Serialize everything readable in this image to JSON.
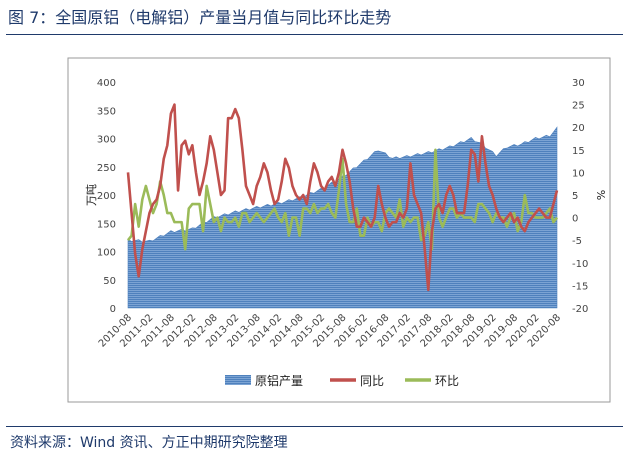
{
  "figure": {
    "title": "图 7：全国原铝（电解铝）产量当月值与同比环比走势",
    "source": "资料来源：Wind 资讯、方正中期研究院整理"
  },
  "colors": {
    "production": "#4f81bd",
    "yoy": "#c0504d",
    "mom": "#9bbb59",
    "title": "#1f3a6b",
    "plot_border": "#9a9a9a"
  },
  "chart_data": {
    "type": "line",
    "area_type": "area",
    "x_tick_labels": [
      "2010-08",
      "2011-02",
      "2011-08",
      "2012-02",
      "2012-08",
      "2013-02",
      "2013-08",
      "2014-02",
      "2014-08",
      "2015-02",
      "2015-08",
      "2016-02",
      "2016-08",
      "2017-02",
      "2017-08",
      "2018-02",
      "2018-08",
      "2019-02",
      "2019-08",
      "2020-02",
      "2020-08"
    ],
    "x_start": "2010-08",
    "n_months": 121,
    "y_left": {
      "label": "万吨",
      "lim": [
        0,
        400
      ],
      "ticks": [
        0,
        50,
        100,
        150,
        200,
        250,
        300,
        350,
        400
      ]
    },
    "y_right": {
      "label": "%",
      "lim": [
        -20,
        30
      ],
      "ticks": [
        -20,
        -15,
        -10,
        -5,
        0,
        5,
        10,
        15,
        20,
        25,
        30
      ]
    },
    "grid": false,
    "legend_position": "bottom",
    "legend": [
      "原铝产量",
      "同比",
      "环比"
    ],
    "series": [
      {
        "name": "原铝产量",
        "axis": "left",
        "type": "area",
        "points": [
          [
            0,
            120
          ],
          [
            6,
            118
          ],
          [
            12,
            135
          ],
          [
            18,
            140
          ],
          [
            24,
            160
          ],
          [
            30,
            170
          ],
          [
            36,
            178
          ],
          [
            42,
            185
          ],
          [
            48,
            195
          ],
          [
            54,
            210
          ],
          [
            60,
            232
          ],
          [
            66,
            260
          ],
          [
            70,
            280
          ],
          [
            74,
            265
          ],
          [
            78,
            268
          ],
          [
            84,
            275
          ],
          [
            90,
            285
          ],
          [
            96,
            300
          ],
          [
            99,
            290
          ],
          [
            102,
            275
          ],
          [
            103,
            270
          ],
          [
            106,
            285
          ],
          [
            110,
            290
          ],
          [
            114,
            300
          ],
          [
            118,
            305
          ],
          [
            120,
            318
          ]
        ]
      },
      {
        "name": "同比",
        "axis": "right",
        "type": "line",
        "points": [
          [
            0,
            10
          ],
          [
            1,
            1
          ],
          [
            2,
            -8
          ],
          [
            3,
            -13
          ],
          [
            4,
            -7
          ],
          [
            5,
            -3
          ],
          [
            6,
            1
          ],
          [
            7,
            3
          ],
          [
            8,
            4
          ],
          [
            9,
            7
          ],
          [
            10,
            13
          ],
          [
            11,
            16
          ],
          [
            12,
            23
          ],
          [
            13,
            25
          ],
          [
            14,
            6
          ],
          [
            15,
            16
          ],
          [
            16,
            17
          ],
          [
            17,
            14
          ],
          [
            18,
            16
          ],
          [
            19,
            10
          ],
          [
            20,
            5
          ],
          [
            21,
            8
          ],
          [
            22,
            12
          ],
          [
            23,
            18
          ],
          [
            24,
            15
          ],
          [
            25,
            10
          ],
          [
            26,
            5
          ],
          [
            27,
            6
          ],
          [
            28,
            22
          ],
          [
            29,
            22
          ],
          [
            30,
            24
          ],
          [
            31,
            22
          ],
          [
            32,
            15
          ],
          [
            33,
            7
          ],
          [
            34,
            5
          ],
          [
            35,
            3
          ],
          [
            36,
            7
          ],
          [
            37,
            9
          ],
          [
            38,
            12
          ],
          [
            39,
            10
          ],
          [
            40,
            6
          ],
          [
            41,
            3
          ],
          [
            42,
            4
          ],
          [
            43,
            8
          ],
          [
            44,
            13
          ],
          [
            45,
            11
          ],
          [
            46,
            7
          ],
          [
            47,
            5
          ],
          [
            48,
            4
          ],
          [
            49,
            5
          ],
          [
            50,
            3
          ],
          [
            51,
            8
          ],
          [
            52,
            12
          ],
          [
            53,
            10
          ],
          [
            54,
            7
          ],
          [
            55,
            6
          ],
          [
            56,
            8
          ],
          [
            57,
            9
          ],
          [
            58,
            7
          ],
          [
            59,
            10
          ],
          [
            60,
            15
          ],
          [
            61,
            12
          ],
          [
            62,
            8
          ],
          [
            63,
            2
          ],
          [
            64,
            -2
          ],
          [
            65,
            -2
          ],
          [
            66,
            0
          ],
          [
            67,
            -1
          ],
          [
            68,
            -2
          ],
          [
            69,
            0
          ],
          [
            70,
            7
          ],
          [
            71,
            3
          ],
          [
            72,
            0
          ],
          [
            73,
            -2
          ],
          [
            74,
            -1
          ],
          [
            75,
            -1
          ],
          [
            76,
            1
          ],
          [
            77,
            0
          ],
          [
            78,
            2
          ],
          [
            79,
            12
          ],
          [
            80,
            5
          ],
          [
            81,
            3
          ],
          [
            82,
            1
          ],
          [
            83,
            -7
          ],
          [
            84,
            -16
          ],
          [
            85,
            -3
          ],
          [
            86,
            2
          ],
          [
            87,
            3
          ],
          [
            88,
            1
          ],
          [
            89,
            5
          ],
          [
            90,
            7
          ],
          [
            91,
            5
          ],
          [
            92,
            1
          ],
          [
            93,
            1
          ],
          [
            94,
            1
          ],
          [
            95,
            7
          ],
          [
            96,
            15
          ],
          [
            97,
            14
          ],
          [
            98,
            8
          ],
          [
            99,
            18
          ],
          [
            100,
            12
          ],
          [
            101,
            7
          ],
          [
            102,
            5
          ],
          [
            103,
            2
          ],
          [
            104,
            0
          ],
          [
            105,
            -1
          ],
          [
            106,
            0
          ],
          [
            107,
            1
          ],
          [
            108,
            -1
          ],
          [
            109,
            0
          ],
          [
            110,
            -2
          ],
          [
            111,
            -3
          ],
          [
            112,
            -1
          ],
          [
            113,
            0
          ],
          [
            114,
            1
          ],
          [
            115,
            2
          ],
          [
            116,
            1
          ],
          [
            117,
            0
          ],
          [
            118,
            0
          ],
          [
            119,
            3
          ],
          [
            120,
            6
          ]
        ]
      },
      {
        "name": "环比",
        "axis": "right",
        "type": "line",
        "points": [
          [
            0,
            -5
          ],
          [
            1,
            -4
          ],
          [
            2,
            3
          ],
          [
            3,
            -2
          ],
          [
            4,
            4
          ],
          [
            5,
            7
          ],
          [
            6,
            4
          ],
          [
            7,
            1
          ],
          [
            8,
            3
          ],
          [
            9,
            8
          ],
          [
            10,
            5
          ],
          [
            11,
            1
          ],
          [
            12,
            1
          ],
          [
            13,
            -1
          ],
          [
            14,
            -1
          ],
          [
            15,
            -1
          ],
          [
            16,
            -7
          ],
          [
            17,
            2
          ],
          [
            18,
            3
          ],
          [
            19,
            3
          ],
          [
            20,
            3
          ],
          [
            21,
            -3
          ],
          [
            22,
            7
          ],
          [
            23,
            3
          ],
          [
            24,
            -1
          ],
          [
            25,
            0
          ],
          [
            26,
            -3
          ],
          [
            27,
            0
          ],
          [
            28,
            -1
          ],
          [
            29,
            -1
          ],
          [
            30,
            0
          ],
          [
            31,
            -2
          ],
          [
            32,
            1
          ],
          [
            33,
            1
          ],
          [
            34,
            -1
          ],
          [
            35,
            0
          ],
          [
            36,
            1
          ],
          [
            37,
            0
          ],
          [
            38,
            -1
          ],
          [
            39,
            0
          ],
          [
            40,
            1
          ],
          [
            41,
            2
          ],
          [
            42,
            0
          ],
          [
            43,
            -1
          ],
          [
            44,
            1
          ],
          [
            45,
            -4
          ],
          [
            46,
            0
          ],
          [
            47,
            0
          ],
          [
            48,
            -4
          ],
          [
            49,
            2
          ],
          [
            50,
            2
          ],
          [
            51,
            1
          ],
          [
            52,
            3
          ],
          [
            53,
            1
          ],
          [
            54,
            2
          ],
          [
            55,
            2
          ],
          [
            56,
            3
          ],
          [
            57,
            1
          ],
          [
            58,
            0
          ],
          [
            59,
            6
          ],
          [
            60,
            13
          ],
          [
            61,
            3
          ],
          [
            62,
            -1
          ],
          [
            63,
            -1
          ],
          [
            64,
            2
          ],
          [
            65,
            -4
          ],
          [
            66,
            -4
          ],
          [
            67,
            0
          ],
          [
            68,
            -2
          ],
          [
            69,
            -1
          ],
          [
            70,
            -1
          ],
          [
            71,
            -3
          ],
          [
            72,
            1
          ],
          [
            73,
            2
          ],
          [
            74,
            1
          ],
          [
            75,
            0
          ],
          [
            76,
            4
          ],
          [
            77,
            -2
          ],
          [
            78,
            0
          ],
          [
            79,
            -1
          ],
          [
            80,
            0
          ],
          [
            81,
            0
          ],
          [
            82,
            -5
          ],
          [
            83,
            -4
          ],
          [
            84,
            -1
          ],
          [
            85,
            -7
          ],
          [
            86,
            15
          ],
          [
            87,
            0
          ],
          [
            88,
            -2
          ],
          [
            89,
            0
          ],
          [
            90,
            2
          ],
          [
            91,
            2
          ],
          [
            92,
            0
          ],
          [
            93,
            1
          ],
          [
            94,
            0
          ],
          [
            95,
            0
          ],
          [
            96,
            0
          ],
          [
            97,
            -1
          ],
          [
            98,
            3
          ],
          [
            99,
            3
          ],
          [
            100,
            2
          ],
          [
            101,
            1
          ],
          [
            102,
            -1
          ],
          [
            103,
            1
          ],
          [
            104,
            0
          ],
          [
            105,
            0
          ],
          [
            106,
            -2
          ],
          [
            107,
            0
          ],
          [
            108,
            1
          ],
          [
            109,
            -3
          ],
          [
            110,
            -1
          ],
          [
            111,
            5
          ],
          [
            112,
            1
          ],
          [
            113,
            1
          ],
          [
            114,
            0
          ],
          [
            115,
            0
          ],
          [
            116,
            0
          ],
          [
            117,
            1
          ],
          [
            118,
            2
          ],
          [
            119,
            -1
          ],
          [
            120,
            0
          ]
        ]
      }
    ]
  }
}
